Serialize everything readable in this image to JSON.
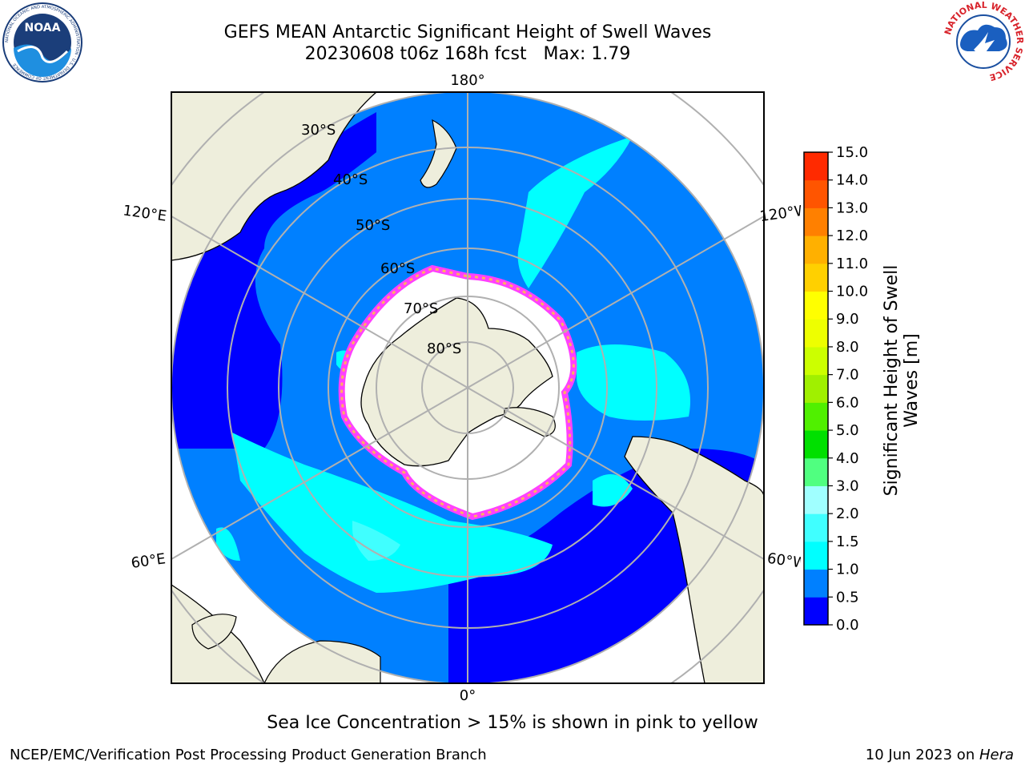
{
  "header": {
    "title_line1": "GEFS MEAN Antarctic Significant Height of Swell Waves",
    "title_line2": "20230608 t06z 168h fcst   Max: 1.79"
  },
  "logos": {
    "left": {
      "name": "noaa-logo",
      "text": "NOAA",
      "ring_text": "NATIONAL OCEANIC AND ATMOSPHERIC ADMINISTRATION · U.S. DEPARTMENT OF COMMERCE"
    },
    "right": {
      "name": "nws-logo",
      "ring_text": "NATIONAL WEATHER SERVICE"
    }
  },
  "map": {
    "projection": "south-polar-stereographic",
    "latitude_labels": [
      "30°S",
      "40°S",
      "50°S",
      "60°S",
      "70°S",
      "80°S"
    ],
    "longitude_labels": {
      "top": "180°",
      "bottom": "0°",
      "upper_left": "120°E",
      "upper_right": "120°W",
      "lower_left": "60°E",
      "lower_right": "60°W"
    },
    "colors": {
      "land": "#eeeedc",
      "ice_free_sea": "#ffffff",
      "ocean_deep": "#0000ff",
      "ocean_mid": "#0080ff",
      "ocean_light": "#00ffff",
      "sea_ice_edge": "#ff40ff",
      "sea_ice_inner": "#ffb060",
      "grid": "#b0b0b0"
    }
  },
  "colorbar": {
    "label_line1": "Significant Height of Swell",
    "label_line2": "Waves [m]",
    "ticks": [
      "0.0",
      "0.5",
      "1.0",
      "1.5",
      "2.0",
      "3.0",
      "4.0",
      "5.0",
      "6.0",
      "7.0",
      "8.0",
      "9.0",
      "10.0",
      "11.0",
      "12.0",
      "13.0",
      "14.0",
      "15.0"
    ],
    "colors": [
      "#0000ff",
      "#0080ff",
      "#00ffff",
      "#40ffff",
      "#a0ffff",
      "#50ff80",
      "#00e000",
      "#50f000",
      "#a0f000",
      "#ccff00",
      "#eeff00",
      "#ffff00",
      "#ffd000",
      "#ffb000",
      "#ff8000",
      "#ff5500",
      "#ff2a00"
    ]
  },
  "note": "Sea Ice Concentration > 15% is shown in pink to yellow",
  "footer": {
    "left": "NCEP/EMC/Verification Post Processing Product Generation Branch",
    "right_prefix": "10 Jun 2023 on ",
    "right_host": "Hera"
  }
}
